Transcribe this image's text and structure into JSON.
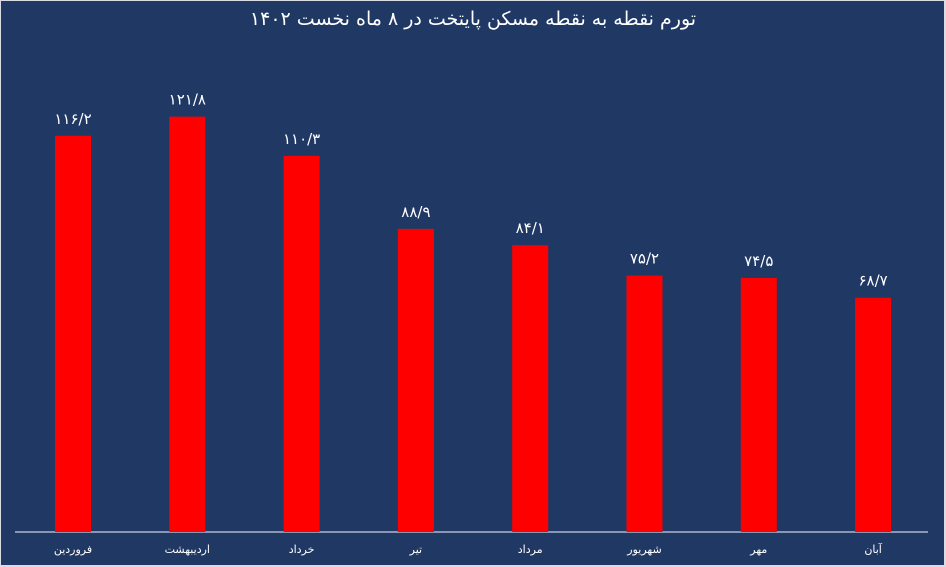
{
  "chart_data": {
    "type": "bar",
    "title": "تورم نقطه به نقطه مسکن پایتخت در ۸ ماه نخست ۱۴۰۲",
    "categories": [
      "فروردین",
      "اردیبهشت",
      "خرداد",
      "تیر",
      "مرداد",
      "شهریور",
      "مهر",
      "آبان"
    ],
    "values": [
      116.2,
      121.8,
      110.3,
      88.9,
      84.1,
      75.2,
      74.5,
      68.7
    ],
    "data_labels": [
      "۱۱۶/۲",
      "۱۲۱/۸",
      "۱۱۰/۳",
      "۸۸/۹",
      "۸۴/۱",
      "۷۵/۲",
      "۷۴/۵",
      "۶۸/۷"
    ],
    "xlabel": "",
    "ylabel": "",
    "ylim": [
      0,
      150
    ],
    "grid": false,
    "legend": "none",
    "colors": {
      "background": "#203864",
      "bar": "#ff0000",
      "text": "#ffffff",
      "axis": "#c8d0e0"
    }
  }
}
